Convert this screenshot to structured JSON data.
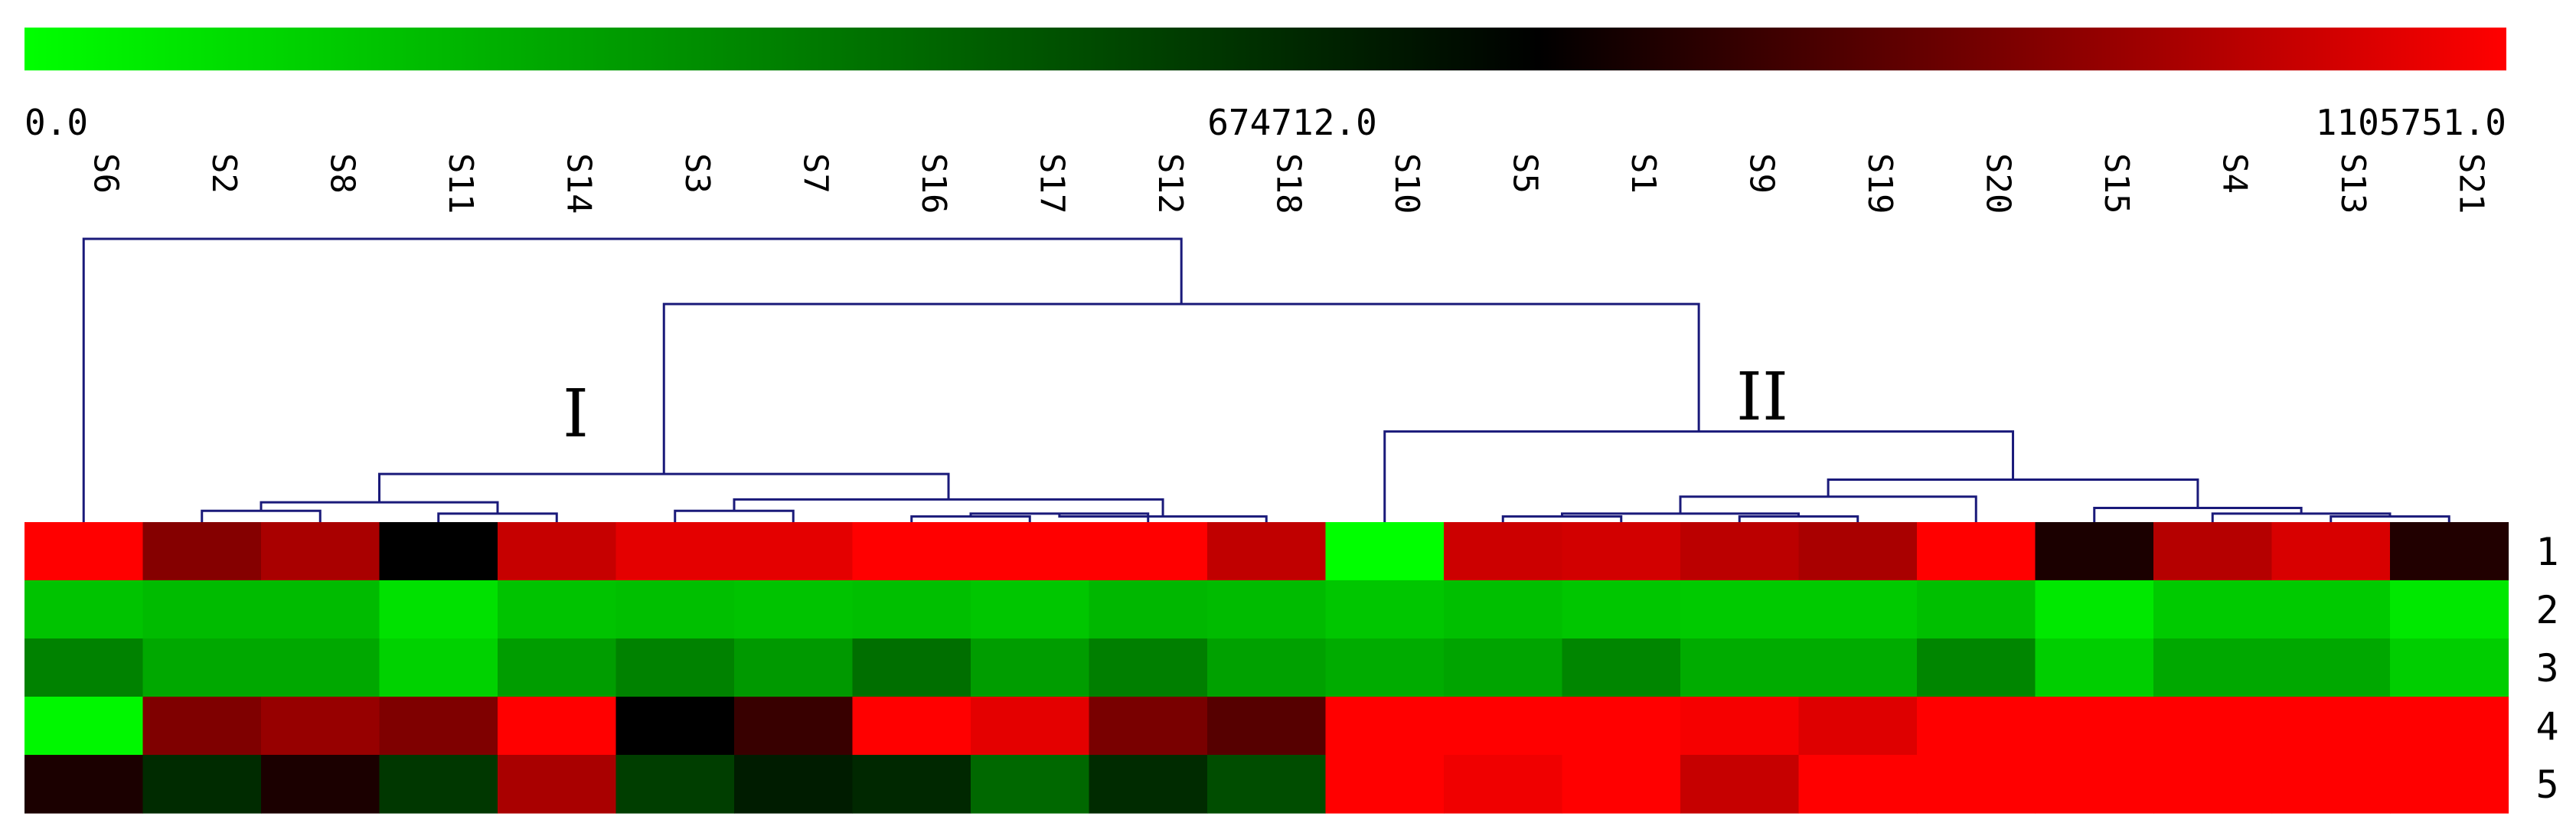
{
  "chart_data": {
    "type": "heatmap",
    "colorbar": {
      "min_label": "0.0",
      "mid_label": "674712.0",
      "max_label": "1105751.0",
      "min": 0,
      "mid": 674712,
      "max": 1105751,
      "colors": [
        "#00ff00",
        "#000000",
        "#ff0000"
      ]
    },
    "columns": [
      "S6",
      "S2",
      "S8",
      "S11",
      "S14",
      "S3",
      "S7",
      "S16",
      "S17",
      "S12",
      "S18",
      "S10",
      "S5",
      "S1",
      "S9",
      "S19",
      "S20",
      "S15",
      "S4",
      "S13",
      "S21"
    ],
    "rows": [
      "1",
      "2",
      "3",
      "4",
      "5"
    ],
    "values": [
      [
        1105751,
        900000,
        960000,
        674712,
        1010000,
        1060000,
        1060000,
        1105751,
        1105751,
        1105751,
        1000000,
        0,
        1020000,
        1030000,
        990000,
        960000,
        1105751,
        720000,
        980000,
        1040000,
        730000
      ],
      [
        160000,
        180000,
        180000,
        80000,
        160000,
        170000,
        160000,
        170000,
        150000,
        190000,
        180000,
        150000,
        170000,
        150000,
        140000,
        140000,
        170000,
        60000,
        140000,
        140000,
        60000
      ],
      [
        330000,
        230000,
        230000,
        120000,
        260000,
        330000,
        270000,
        380000,
        260000,
        340000,
        250000,
        220000,
        240000,
        320000,
        220000,
        220000,
        320000,
        130000,
        230000,
        230000,
        130000
      ],
      [
        20000,
        890000,
        930000,
        890000,
        1105751,
        675000,
        770000,
        1105751,
        1060000,
        880000,
        820000,
        1105751,
        1105751,
        1105751,
        1090000,
        1050000,
        1105751,
        1105751,
        1105751,
        1105751,
        1105751
      ],
      [
        720000,
        560000,
        720000,
        530000,
        960000,
        510000,
        600000,
        570000,
        400000,
        560000,
        470000,
        1105751,
        1080000,
        1105751,
        1010000,
        1105751,
        1105751,
        1105751,
        1105751,
        1105751,
        1105751
      ]
    ],
    "dendrogram_nodes": [
      {
        "left": "S11",
        "right": "S14",
        "height": 0.03
      },
      {
        "left": "S2",
        "right": "S8",
        "height": 0.04
      },
      {
        "left": "S2+S8",
        "right": "S11+S14",
        "height": 0.07
      },
      {
        "left": "S16",
        "right": "S17",
        "height": 0.02
      },
      {
        "left": "S16+S17",
        "right": "S12",
        "height": 0.03
      },
      {
        "left": "S16+S17+S12",
        "right": "S18",
        "height": 0.02
      },
      {
        "left": "S3",
        "right": "S7",
        "height": 0.04
      },
      {
        "left": "S3+S7",
        "right": "S16+S17+S12+S18",
        "height": 0.08
      },
      {
        "left": "S2+S8+S11+S14",
        "right": "S3+S7+S16+S17+S12+S18",
        "height": 0.17
      },
      {
        "left": "S5",
        "right": "S1",
        "height": 0.02
      },
      {
        "left": "S9",
        "right": "S19",
        "height": 0.02
      },
      {
        "left": "S5+S1",
        "right": "S9+S19",
        "height": 0.03
      },
      {
        "left": "S5+S1+S9+S19",
        "right": "S20",
        "height": 0.09
      },
      {
        "left": "S13",
        "right": "S21",
        "height": 0.02
      },
      {
        "left": "S4",
        "right": "S13+S21",
        "height": 0.03
      },
      {
        "left": "S15",
        "right": "S4+S13+S21",
        "height": 0.05
      },
      {
        "left": "S5+S1+S9+S19+S20",
        "right": "S15+S4+S13+S21",
        "height": 0.15
      },
      {
        "left": "S10",
        "right": "S5+S1+S9+S19+S20+S15+S4+S13+S21",
        "height": 0.32
      },
      {
        "left": "S2+S8+S11+S14+S3+S7+S16+S17+S12+S18",
        "right": "S10+S5+S1+S9+S19+S20+S15+S4+S13+S21",
        "height": 0.77
      },
      {
        "left": "S6",
        "right": "rest",
        "height": 1.0
      }
    ],
    "cluster_labels": [
      {
        "text": "I",
        "cluster": "S2+S8+S11+S14+S3+S7+S16+S17+S12+S18"
      },
      {
        "text": "II",
        "cluster": "S10+S5+S1+S9+S19+S20+S15+S4+S13+S21"
      }
    ]
  }
}
